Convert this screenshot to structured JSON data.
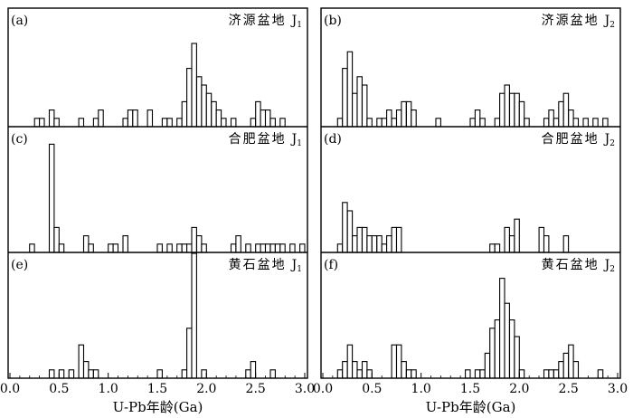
{
  "x_axis": {
    "ticks": [
      "0.0",
      "0.5",
      "1.0",
      "1.5",
      "2.0",
      "2.5",
      "3.0"
    ],
    "label": "U-Pb年龄(Ga)"
  },
  "chart_data": [
    {
      "type": "bar",
      "panel": "(a)",
      "title": "济源盆地",
      "stratum": "J",
      "stratum_sub": "1",
      "xlabel": "U-Pb年龄(Ga)",
      "xlim": [
        0,
        3
      ],
      "bin_width": 0.05,
      "bins": [
        [
          0.25,
          1
        ],
        [
          0.3,
          1
        ],
        [
          0.4,
          2
        ],
        [
          0.45,
          1
        ],
        [
          0.7,
          1
        ],
        [
          0.85,
          1
        ],
        [
          0.9,
          2
        ],
        [
          1.15,
          1
        ],
        [
          1.2,
          2
        ],
        [
          1.25,
          2
        ],
        [
          1.4,
          2
        ],
        [
          1.55,
          1
        ],
        [
          1.6,
          1
        ],
        [
          1.7,
          1
        ],
        [
          1.75,
          3
        ],
        [
          1.8,
          7
        ],
        [
          1.85,
          10
        ],
        [
          1.9,
          6
        ],
        [
          1.95,
          5
        ],
        [
          2.0,
          4
        ],
        [
          2.05,
          3
        ],
        [
          2.1,
          2
        ],
        [
          2.15,
          1
        ],
        [
          2.25,
          1
        ],
        [
          2.45,
          1
        ],
        [
          2.5,
          3
        ],
        [
          2.55,
          2
        ],
        [
          2.6,
          2
        ],
        [
          2.65,
          1
        ],
        [
          2.75,
          1
        ]
      ]
    },
    {
      "type": "bar",
      "panel": "(b)",
      "title": "济源盆地",
      "stratum": "J",
      "stratum_sub": "2",
      "xlabel": "U-Pb年龄(Ga)",
      "xlim": [
        0,
        3
      ],
      "bin_width": 0.05,
      "bins": [
        [
          0.15,
          1
        ],
        [
          0.2,
          7
        ],
        [
          0.25,
          9
        ],
        [
          0.3,
          4
        ],
        [
          0.35,
          6
        ],
        [
          0.4,
          5
        ],
        [
          0.45,
          1
        ],
        [
          0.55,
          1
        ],
        [
          0.6,
          1
        ],
        [
          0.65,
          2
        ],
        [
          0.7,
          1
        ],
        [
          0.75,
          2
        ],
        [
          0.8,
          3
        ],
        [
          0.85,
          3
        ],
        [
          0.9,
          2
        ],
        [
          1.15,
          1
        ],
        [
          1.5,
          1
        ],
        [
          1.55,
          2
        ],
        [
          1.6,
          1
        ],
        [
          1.75,
          1
        ],
        [
          1.8,
          4
        ],
        [
          1.85,
          5
        ],
        [
          1.9,
          4
        ],
        [
          1.95,
          4
        ],
        [
          2.0,
          3
        ],
        [
          2.05,
          1
        ],
        [
          2.25,
          1
        ],
        [
          2.3,
          2
        ],
        [
          2.35,
          1
        ],
        [
          2.4,
          3
        ],
        [
          2.45,
          4
        ],
        [
          2.5,
          2
        ],
        [
          2.55,
          1
        ],
        [
          2.65,
          1
        ],
        [
          2.75,
          1
        ],
        [
          2.85,
          1
        ]
      ]
    },
    {
      "type": "bar",
      "panel": "(c)",
      "title": "合肥盆地",
      "stratum": "J",
      "stratum_sub": "1",
      "xlabel": "U-Pb年龄(Ga)",
      "xlim": [
        0,
        3
      ],
      "bin_width": 0.05,
      "bins": [
        [
          0.2,
          1
        ],
        [
          0.4,
          13
        ],
        [
          0.45,
          3
        ],
        [
          0.5,
          1
        ],
        [
          0.75,
          2
        ],
        [
          0.8,
          1
        ],
        [
          1.0,
          1
        ],
        [
          1.05,
          1
        ],
        [
          1.15,
          2
        ],
        [
          1.5,
          1
        ],
        [
          1.6,
          1
        ],
        [
          1.7,
          1
        ],
        [
          1.75,
          1
        ],
        [
          1.8,
          1
        ],
        [
          1.85,
          3
        ],
        [
          1.9,
          2
        ],
        [
          1.95,
          1
        ],
        [
          2.25,
          1
        ],
        [
          2.3,
          2
        ],
        [
          2.4,
          1
        ],
        [
          2.5,
          1
        ],
        [
          2.55,
          1
        ],
        [
          2.6,
          1
        ],
        [
          2.65,
          1
        ],
        [
          2.7,
          1
        ],
        [
          2.75,
          1
        ],
        [
          2.85,
          1
        ],
        [
          2.95,
          1
        ]
      ]
    },
    {
      "type": "bar",
      "panel": "(d)",
      "title": "合肥盆地",
      "stratum": "J",
      "stratum_sub": "2",
      "xlabel": "U-Pb年龄(Ga)",
      "xlim": [
        0,
        3
      ],
      "bin_width": 0.05,
      "bins": [
        [
          0.15,
          1
        ],
        [
          0.2,
          6
        ],
        [
          0.25,
          5
        ],
        [
          0.3,
          2
        ],
        [
          0.35,
          3
        ],
        [
          0.4,
          3
        ],
        [
          0.45,
          2
        ],
        [
          0.5,
          2
        ],
        [
          0.55,
          2
        ],
        [
          0.6,
          1
        ],
        [
          0.65,
          2
        ],
        [
          0.7,
          3
        ],
        [
          0.75,
          3
        ],
        [
          1.7,
          1
        ],
        [
          1.75,
          1
        ],
        [
          1.85,
          3
        ],
        [
          1.9,
          2
        ],
        [
          1.95,
          4
        ],
        [
          2.2,
          3
        ],
        [
          2.25,
          2
        ],
        [
          2.45,
          2
        ]
      ]
    },
    {
      "type": "bar",
      "panel": "(e)",
      "title": "黄石盆地",
      "stratum": "J",
      "stratum_sub": "1",
      "xlabel": "U-Pb年龄(Ga)",
      "xlim": [
        0,
        3
      ],
      "bin_width": 0.05,
      "bins": [
        [
          0.4,
          1
        ],
        [
          0.5,
          1
        ],
        [
          0.6,
          1
        ],
        [
          0.7,
          4
        ],
        [
          0.75,
          2
        ],
        [
          0.8,
          1
        ],
        [
          0.85,
          1
        ],
        [
          1.5,
          1
        ],
        [
          1.75,
          1
        ],
        [
          1.8,
          6
        ],
        [
          1.85,
          15
        ],
        [
          1.95,
          1
        ],
        [
          2.4,
          1
        ],
        [
          2.45,
          2
        ],
        [
          2.65,
          1
        ]
      ]
    },
    {
      "type": "bar",
      "panel": "(f)",
      "title": "黄石盆地",
      "stratum": "J",
      "stratum_sub": "2",
      "xlabel": "U-Pb年龄(Ga)",
      "xlim": [
        0,
        3
      ],
      "bin_width": 0.05,
      "bins": [
        [
          0.15,
          1
        ],
        [
          0.2,
          2
        ],
        [
          0.25,
          4
        ],
        [
          0.3,
          2
        ],
        [
          0.35,
          1
        ],
        [
          0.4,
          2
        ],
        [
          0.45,
          1
        ],
        [
          0.7,
          4
        ],
        [
          0.75,
          4
        ],
        [
          0.8,
          2
        ],
        [
          0.85,
          1
        ],
        [
          0.9,
          1
        ],
        [
          1.45,
          1
        ],
        [
          1.55,
          1
        ],
        [
          1.6,
          1
        ],
        [
          1.65,
          3
        ],
        [
          1.7,
          6
        ],
        [
          1.75,
          7
        ],
        [
          1.8,
          12
        ],
        [
          1.85,
          9
        ],
        [
          1.9,
          7
        ],
        [
          1.95,
          5
        ],
        [
          2.0,
          1
        ],
        [
          2.25,
          1
        ],
        [
          2.3,
          1
        ],
        [
          2.35,
          1
        ],
        [
          2.4,
          2
        ],
        [
          2.45,
          3
        ],
        [
          2.5,
          4
        ],
        [
          2.55,
          2
        ],
        [
          2.8,
          1
        ]
      ]
    }
  ]
}
